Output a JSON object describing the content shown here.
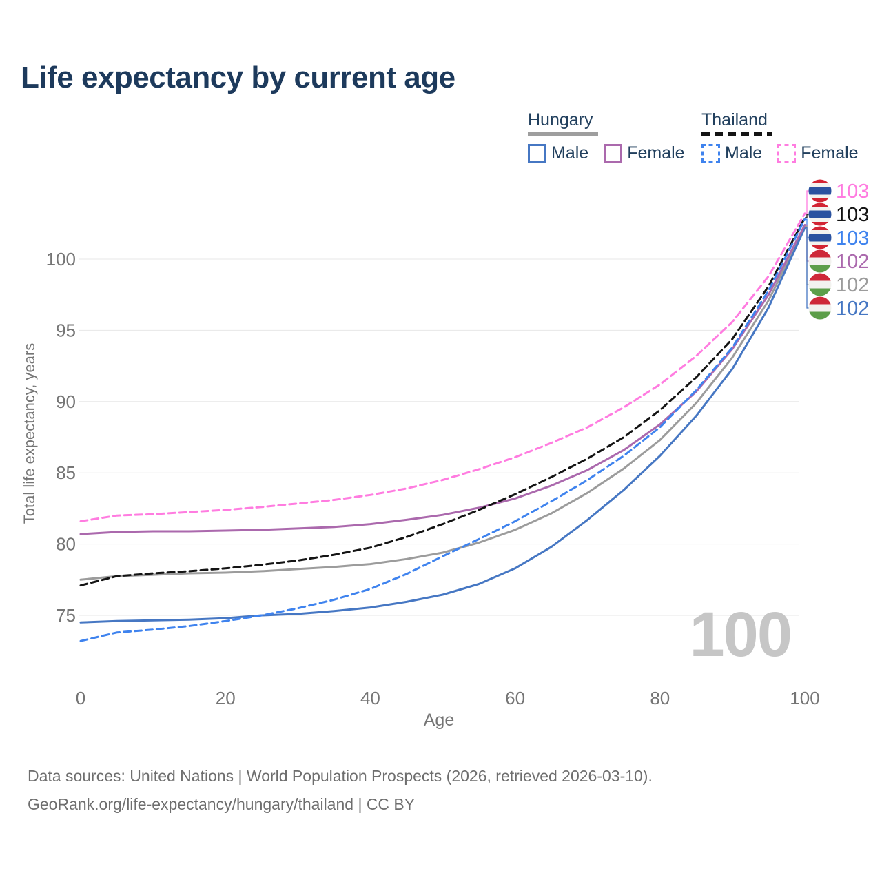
{
  "title": "Life expectancy by current age",
  "legend": {
    "groups": [
      {
        "country": "Hungary",
        "line_style": "solid",
        "swatch_color": "#9e9e9e",
        "items": [
          {
            "label": "Male",
            "color": "#4677c3",
            "style": "solid"
          },
          {
            "label": "Female",
            "color": "#ab69ad",
            "style": "solid"
          }
        ]
      },
      {
        "country": "Thailand",
        "line_style": "dashed",
        "swatch_color": "#141414",
        "items": [
          {
            "label": "Male",
            "color": "#3f83ee",
            "style": "dashed"
          },
          {
            "label": "Female",
            "color": "#ff7ce0",
            "style": "dashed"
          }
        ]
      }
    ]
  },
  "chart_data": {
    "type": "line",
    "title": "Life expectancy by current age",
    "xlabel": "Age",
    "ylabel": "Total life expectancy, years",
    "x": [
      0,
      5,
      10,
      15,
      20,
      25,
      30,
      35,
      40,
      45,
      50,
      55,
      60,
      65,
      70,
      75,
      80,
      85,
      90,
      95,
      100
    ],
    "xticks": [
      0,
      20,
      40,
      60,
      80,
      100
    ],
    "yticks": [
      75,
      80,
      85,
      90,
      95,
      100
    ],
    "xlim": [
      0,
      100
    ],
    "ylim": [
      72.5,
      104
    ],
    "grid": "horizontal",
    "legend_position": "top-right",
    "series": [
      {
        "id": "hu_total",
        "name": "Hungary Total",
        "country": "Hungary",
        "sex": "Both",
        "style": "solid",
        "color": "#9c9c9c",
        "values": [
          77.5,
          77.75,
          77.85,
          77.95,
          78.0,
          78.1,
          78.25,
          78.4,
          78.6,
          78.95,
          79.4,
          80.1,
          81.0,
          82.15,
          83.6,
          85.3,
          87.3,
          89.9,
          93.1,
          97.1,
          102.3
        ]
      },
      {
        "id": "hu_male",
        "name": "Hungary Male",
        "country": "Hungary",
        "sex": "Male",
        "style": "solid",
        "color": "#4677c3",
        "values": [
          74.5,
          74.6,
          74.65,
          74.7,
          74.8,
          75.0,
          75.1,
          75.3,
          75.55,
          75.95,
          76.45,
          77.2,
          78.3,
          79.8,
          81.7,
          83.8,
          86.2,
          89.0,
          92.3,
          96.6,
          102.2
        ]
      },
      {
        "id": "hu_female",
        "name": "Hungary Female",
        "country": "Hungary",
        "sex": "Female",
        "style": "solid",
        "color": "#ab69ad",
        "values": [
          80.7,
          80.85,
          80.9,
          80.9,
          80.95,
          81.0,
          81.1,
          81.2,
          81.4,
          81.7,
          82.05,
          82.55,
          83.2,
          84.1,
          85.2,
          86.6,
          88.4,
          90.7,
          93.7,
          97.5,
          102.4
        ]
      },
      {
        "id": "th_total",
        "name": "Thailand Total",
        "country": "Thailand",
        "sex": "Both",
        "style": "dashed",
        "color": "#141414",
        "values": [
          77.1,
          77.75,
          77.95,
          78.1,
          78.3,
          78.55,
          78.85,
          79.25,
          79.75,
          80.5,
          81.4,
          82.4,
          83.5,
          84.7,
          86.0,
          87.5,
          89.4,
          91.7,
          94.4,
          98.1,
          102.9
        ]
      },
      {
        "id": "th_male",
        "name": "Thailand Male",
        "country": "Thailand",
        "sex": "Male",
        "style": "dashed",
        "color": "#3f83ee",
        "values": [
          73.2,
          73.8,
          74.0,
          74.25,
          74.6,
          75.0,
          75.5,
          76.1,
          76.85,
          77.9,
          79.15,
          80.35,
          81.6,
          83.0,
          84.5,
          86.2,
          88.2,
          90.8,
          93.8,
          97.8,
          102.8
        ]
      },
      {
        "id": "th_female",
        "name": "Thailand Female",
        "country": "Thailand",
        "sex": "Female",
        "style": "dashed",
        "color": "#ff7ce0",
        "values": [
          81.6,
          82.0,
          82.1,
          82.25,
          82.4,
          82.6,
          82.85,
          83.1,
          83.45,
          83.9,
          84.5,
          85.25,
          86.1,
          87.1,
          88.2,
          89.6,
          91.2,
          93.2,
          95.6,
          98.8,
          103.2
        ]
      }
    ]
  },
  "end_labels": [
    {
      "series": "th_female",
      "value": "103",
      "color": "#ff7ce0",
      "flag": "thailand"
    },
    {
      "series": "th_total",
      "value": "103",
      "color": "#141414",
      "flag": "thailand"
    },
    {
      "series": "th_male",
      "value": "103",
      "color": "#3f83ee",
      "flag": "thailand"
    },
    {
      "series": "hu_female",
      "value": "102",
      "color": "#ab69ad",
      "flag": "hungary"
    },
    {
      "series": "hu_total",
      "value": "102",
      "color": "#9c9c9c",
      "flag": "hungary"
    },
    {
      "series": "hu_male",
      "value": "102",
      "color": "#4677c3",
      "flag": "hungary"
    }
  ],
  "flags": {
    "hungary": {
      "stripes": [
        [
          "#ce2939",
          1
        ],
        [
          "#f2f2ef",
          1
        ],
        [
          "#5c9e49",
          1
        ]
      ]
    },
    "thailand": {
      "stripes": [
        [
          "#d22433",
          1
        ],
        [
          "#f2f2ef",
          1
        ],
        [
          "#2a52a0",
          2
        ],
        [
          "#f2f2ef",
          1
        ],
        [
          "#d22433",
          1
        ]
      ]
    }
  },
  "watermark": "100",
  "colors": {
    "title": "#1d3a5c",
    "axis_text": "#757575",
    "gridline": "#e7e7e7",
    "watermark": "#c6c6c6",
    "footer_text": "#6e6e6e"
  },
  "footer": {
    "line1": "Data sources: United Nations | World Population Prospects (2026, retrieved 2026-03-10).",
    "line2": "GeoRank.org/life-expectancy/hungary/thailand | CC BY"
  }
}
